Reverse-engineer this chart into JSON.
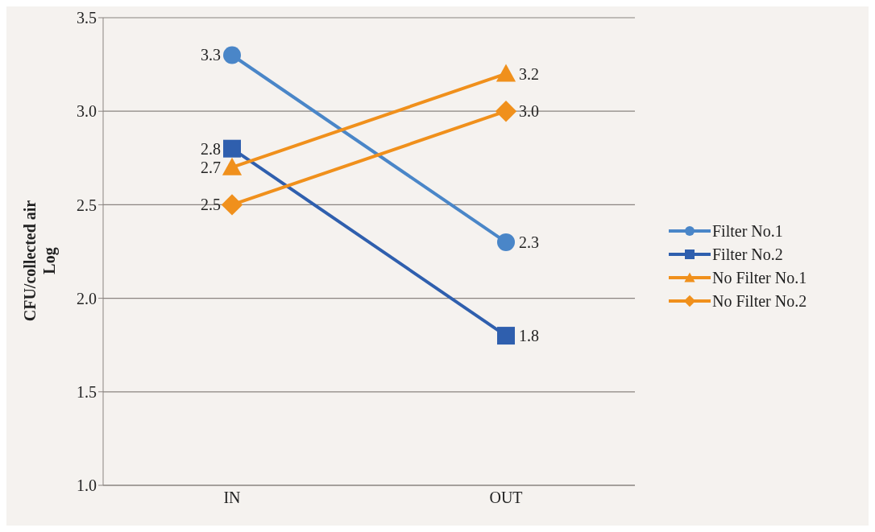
{
  "chart_data": {
    "type": "line",
    "ylabel": "CFU/collected air\nLog",
    "categories": [
      "IN",
      "OUT"
    ],
    "series": [
      {
        "name": "Filter No.1",
        "color": "#4a86c8",
        "values": [
          3.3,
          2.3
        ],
        "marker": "circle",
        "value_labels": [
          "3.3",
          "2.3"
        ]
      },
      {
        "name": "Filter No.2",
        "color": "#2f5fae",
        "values": [
          2.8,
          1.8
        ],
        "marker": "square",
        "value_labels": [
          "2.8",
          "1.8"
        ]
      },
      {
        "name": "No Filter No.1",
        "color": "#f0901c",
        "values": [
          2.7,
          3.2
        ],
        "marker": "triangle",
        "value_labels": [
          "2.7",
          "3.2"
        ]
      },
      {
        "name": "No Filter No.2",
        "color": "#f0901c",
        "values": [
          2.5,
          3.0
        ],
        "marker": "diamond",
        "value_labels": [
          "2.5",
          "3.0"
        ]
      }
    ],
    "ylim": [
      1,
      3.5
    ],
    "yticks": [
      {
        "value": 1,
        "label": "1.0"
      },
      {
        "value": 1.5,
        "label": "1.5"
      },
      {
        "value": 2,
        "label": "2.0"
      },
      {
        "value": 2.5,
        "label": "2.5"
      },
      {
        "value": 3,
        "label": "3.0"
      },
      {
        "value": 3.5,
        "label": "3.5"
      }
    ],
    "grid": "y",
    "legend": "right",
    "line_style": "solid"
  }
}
